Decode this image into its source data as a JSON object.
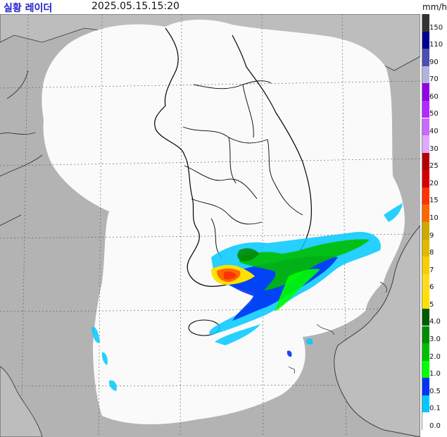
{
  "header": {
    "title": "실황 레이더",
    "timestamp": "2025.05.15.15:20",
    "unit": "mm/h"
  },
  "colors": {
    "sea_land": "#b3b3b3",
    "coverage": "#fafafa",
    "border": "#000000",
    "grid": "#555555"
  },
  "legend": [
    {
      "label": "150",
      "color": "#333333"
    },
    {
      "label": "110",
      "color": "#000390"
    },
    {
      "label": "90",
      "color": "#4c4eb1"
    },
    {
      "label": "70",
      "color": "#b3b4de"
    },
    {
      "label": "60",
      "color": "#9300e4"
    },
    {
      "label": "50",
      "color": "#b329ff"
    },
    {
      "label": "40",
      "color": "#c969ff"
    },
    {
      "label": "30",
      "color": "#e0a9ff"
    },
    {
      "label": "25",
      "color": "#b40000"
    },
    {
      "label": "20",
      "color": "#d20000"
    },
    {
      "label": "15",
      "color": "#ff3300"
    },
    {
      "label": "10",
      "color": "#ff6600"
    },
    {
      "label": "9",
      "color": "#ccaa00"
    },
    {
      "label": "8",
      "color": "#e0b900"
    },
    {
      "label": "7",
      "color": "#f9cd00"
    },
    {
      "label": "6",
      "color": "#ffdc1f"
    },
    {
      "label": "5",
      "color": "#ffe100"
    },
    {
      "label": "4.0",
      "color": "#005a00"
    },
    {
      "label": "3.0",
      "color": "#008c00"
    },
    {
      "label": "2.0",
      "color": "#00be00"
    },
    {
      "label": "1.0",
      "color": "#00ff00"
    },
    {
      "label": "0.5",
      "color": "#0033f5"
    },
    {
      "label": "0.1",
      "color": "#00c8ff"
    },
    {
      "label": "0.0",
      "color": "#ffffff"
    }
  ]
}
